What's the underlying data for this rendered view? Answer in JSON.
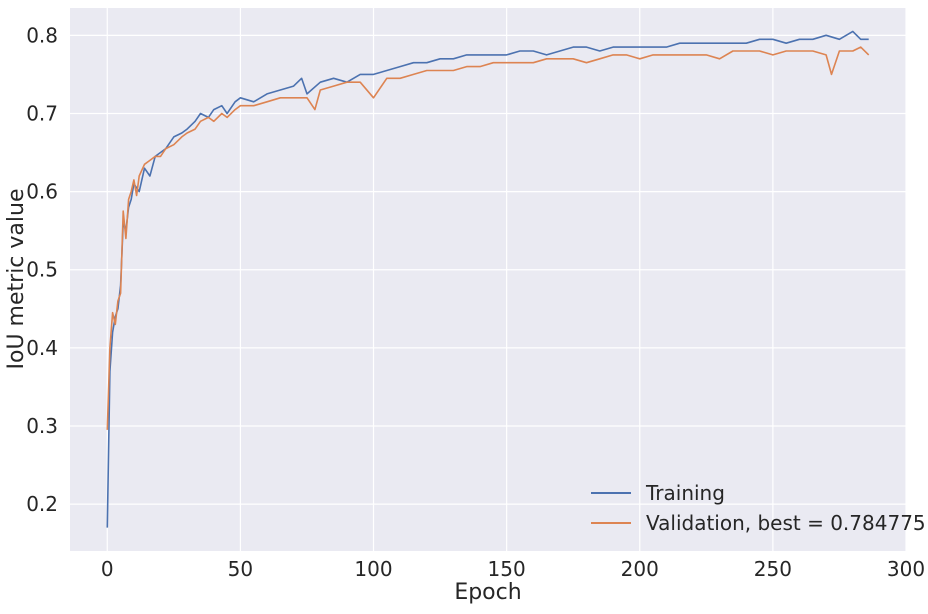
{
  "chart_data": {
    "type": "line",
    "title": "",
    "xlabel": "Epoch",
    "ylabel": "IoU metric value",
    "xlim": [
      -14,
      300
    ],
    "ylim": [
      0.14,
      0.835
    ],
    "xticks": [
      0,
      50,
      100,
      150,
      200,
      250,
      300
    ],
    "yticks": [
      0.2,
      0.3,
      0.4,
      0.5,
      0.6,
      0.7,
      0.8
    ],
    "grid": true,
    "legend_position": "lower-right",
    "colors": {
      "background": "#eaeaf2",
      "grid": "#ffffff",
      "training": "#4c72b0",
      "validation": "#dd8452"
    },
    "series": [
      {
        "name": "Training",
        "color": "#4c72b0",
        "points": [
          [
            0,
            0.17
          ],
          [
            1,
            0.37
          ],
          [
            2,
            0.42
          ],
          [
            3,
            0.44
          ],
          [
            4,
            0.45
          ],
          [
            5,
            0.48
          ],
          [
            6,
            0.56
          ],
          [
            7,
            0.55
          ],
          [
            8,
            0.58
          ],
          [
            9,
            0.59
          ],
          [
            10,
            0.61
          ],
          [
            12,
            0.6
          ],
          [
            14,
            0.63
          ],
          [
            16,
            0.62
          ],
          [
            18,
            0.645
          ],
          [
            20,
            0.65
          ],
          [
            22,
            0.655
          ],
          [
            25,
            0.67
          ],
          [
            28,
            0.675
          ],
          [
            30,
            0.68
          ],
          [
            33,
            0.69
          ],
          [
            35,
            0.7
          ],
          [
            38,
            0.695
          ],
          [
            40,
            0.705
          ],
          [
            43,
            0.71
          ],
          [
            45,
            0.7
          ],
          [
            48,
            0.715
          ],
          [
            50,
            0.72
          ],
          [
            55,
            0.715
          ],
          [
            60,
            0.725
          ],
          [
            65,
            0.73
          ],
          [
            70,
            0.735
          ],
          [
            73,
            0.745
          ],
          [
            75,
            0.725
          ],
          [
            80,
            0.74
          ],
          [
            85,
            0.745
          ],
          [
            90,
            0.74
          ],
          [
            95,
            0.75
          ],
          [
            100,
            0.75
          ],
          [
            105,
            0.755
          ],
          [
            110,
            0.76
          ],
          [
            115,
            0.765
          ],
          [
            120,
            0.765
          ],
          [
            125,
            0.77
          ],
          [
            130,
            0.77
          ],
          [
            135,
            0.775
          ],
          [
            140,
            0.775
          ],
          [
            145,
            0.775
          ],
          [
            150,
            0.775
          ],
          [
            155,
            0.78
          ],
          [
            160,
            0.78
          ],
          [
            165,
            0.775
          ],
          [
            170,
            0.78
          ],
          [
            175,
            0.785
          ],
          [
            180,
            0.785
          ],
          [
            185,
            0.78
          ],
          [
            190,
            0.785
          ],
          [
            195,
            0.785
          ],
          [
            200,
            0.785
          ],
          [
            205,
            0.785
          ],
          [
            210,
            0.785
          ],
          [
            215,
            0.79
          ],
          [
            220,
            0.79
          ],
          [
            225,
            0.79
          ],
          [
            230,
            0.79
          ],
          [
            235,
            0.79
          ],
          [
            240,
            0.79
          ],
          [
            245,
            0.795
          ],
          [
            250,
            0.795
          ],
          [
            255,
            0.79
          ],
          [
            260,
            0.795
          ],
          [
            265,
            0.795
          ],
          [
            270,
            0.8
          ],
          [
            275,
            0.795
          ],
          [
            280,
            0.805
          ],
          [
            283,
            0.795
          ],
          [
            286,
            0.795
          ]
        ]
      },
      {
        "name": "Validation, best = 0.784775",
        "color": "#dd8452",
        "points": [
          [
            0,
            0.295
          ],
          [
            1,
            0.4
          ],
          [
            2,
            0.445
          ],
          [
            3,
            0.43
          ],
          [
            4,
            0.46
          ],
          [
            5,
            0.47
          ],
          [
            6,
            0.575
          ],
          [
            7,
            0.54
          ],
          [
            8,
            0.59
          ],
          [
            9,
            0.6
          ],
          [
            10,
            0.615
          ],
          [
            11,
            0.595
          ],
          [
            12,
            0.62
          ],
          [
            14,
            0.635
          ],
          [
            16,
            0.64
          ],
          [
            18,
            0.645
          ],
          [
            20,
            0.645
          ],
          [
            22,
            0.655
          ],
          [
            25,
            0.66
          ],
          [
            28,
            0.67
          ],
          [
            30,
            0.675
          ],
          [
            33,
            0.68
          ],
          [
            35,
            0.69
          ],
          [
            38,
            0.695
          ],
          [
            40,
            0.69
          ],
          [
            43,
            0.7
          ],
          [
            45,
            0.695
          ],
          [
            48,
            0.705
          ],
          [
            50,
            0.71
          ],
          [
            55,
            0.71
          ],
          [
            60,
            0.715
          ],
          [
            65,
            0.72
          ],
          [
            70,
            0.72
          ],
          [
            75,
            0.72
          ],
          [
            78,
            0.705
          ],
          [
            80,
            0.73
          ],
          [
            85,
            0.735
          ],
          [
            90,
            0.74
          ],
          [
            95,
            0.74
          ],
          [
            100,
            0.72
          ],
          [
            105,
            0.745
          ],
          [
            110,
            0.745
          ],
          [
            115,
            0.75
          ],
          [
            120,
            0.755
          ],
          [
            125,
            0.755
          ],
          [
            130,
            0.755
          ],
          [
            135,
            0.76
          ],
          [
            140,
            0.76
          ],
          [
            145,
            0.765
          ],
          [
            150,
            0.765
          ],
          [
            155,
            0.765
          ],
          [
            160,
            0.765
          ],
          [
            165,
            0.77
          ],
          [
            170,
            0.77
          ],
          [
            175,
            0.77
          ],
          [
            180,
            0.765
          ],
          [
            185,
            0.77
          ],
          [
            190,
            0.775
          ],
          [
            195,
            0.775
          ],
          [
            200,
            0.77
          ],
          [
            205,
            0.775
          ],
          [
            210,
            0.775
          ],
          [
            215,
            0.775
          ],
          [
            220,
            0.775
          ],
          [
            225,
            0.775
          ],
          [
            230,
            0.77
          ],
          [
            235,
            0.78
          ],
          [
            240,
            0.78
          ],
          [
            245,
            0.78
          ],
          [
            250,
            0.775
          ],
          [
            255,
            0.78
          ],
          [
            260,
            0.78
          ],
          [
            265,
            0.78
          ],
          [
            270,
            0.775
          ],
          [
            272,
            0.75
          ],
          [
            275,
            0.78
          ],
          [
            280,
            0.78
          ],
          [
            283,
            0.785
          ],
          [
            286,
            0.775
          ]
        ]
      }
    ]
  }
}
